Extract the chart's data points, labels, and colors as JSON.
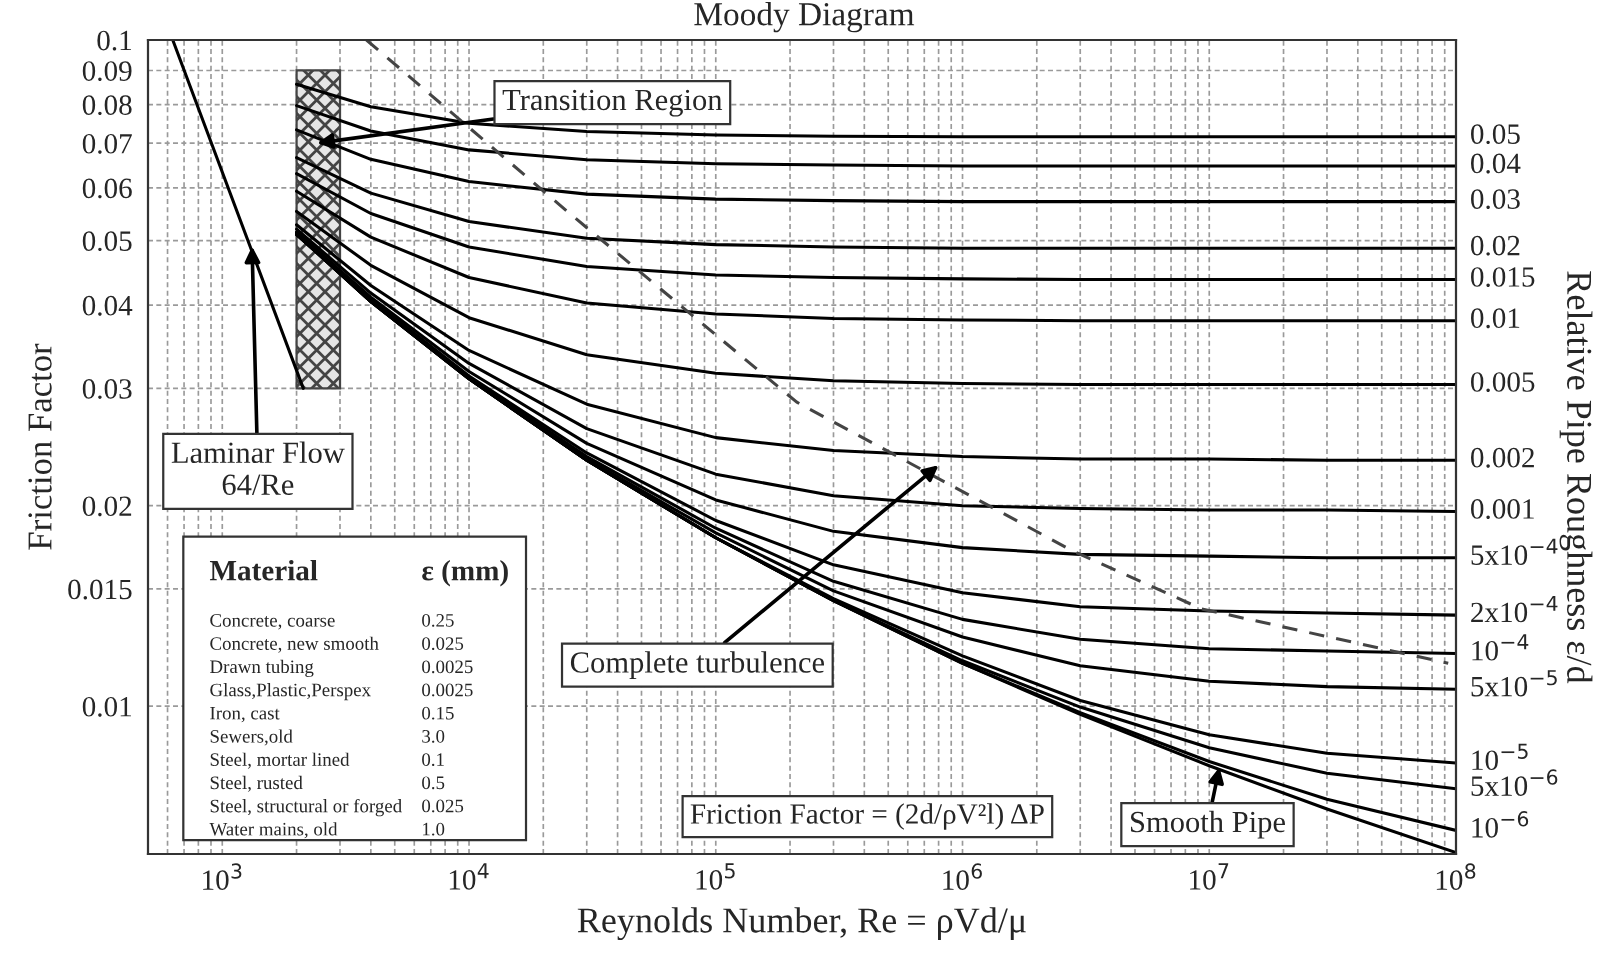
{
  "chart_data": {
    "type": "line",
    "title": "Moody Diagram",
    "xlabel": "Reynolds Number, Re = ρVd/μ",
    "ylabel": "Friction Factor",
    "log": "xy",
    "grid": true,
    "xlim": [
      500,
      100000000
    ],
    "ylim": [
      0.006,
      0.1
    ],
    "xticks": [
      {
        "value": 1000,
        "label": "10$^{3}$"
      },
      {
        "value": 10000,
        "label": "10$^{4}$"
      },
      {
        "value": 100000,
        "label": "10$^{5}$"
      },
      {
        "value": 1000000,
        "label": "10$^{6}$"
      },
      {
        "value": 10000000,
        "label": "10$^{7}$"
      },
      {
        "value": 100000000,
        "label": "10$^{8}$"
      }
    ],
    "yticks": [
      0.1,
      0.09,
      0.08,
      0.07,
      0.06,
      0.05,
      0.04,
      0.03,
      0.02,
      0.015,
      0.01
    ],
    "x": [
      2000,
      4000,
      10000,
      30000,
      100000,
      300000,
      1000000,
      3000000,
      10000000,
      30000000,
      100000000
    ],
    "series": [
      {
        "name": "0.05",
        "color": "#000000",
        "values": [
          0.0858,
          0.0794,
          0.075,
          0.0729,
          0.072,
          0.0717,
          0.0716,
          0.0716,
          0.0716,
          0.0716,
          0.0716
        ]
      },
      {
        "name": "0.04",
        "color": "#000000",
        "values": [
          0.0797,
          0.073,
          0.0684,
          0.0661,
          0.0652,
          0.0649,
          0.0647,
          0.0647,
          0.0647,
          0.0647,
          0.0647
        ]
      },
      {
        "name": "0.03",
        "color": "#000000",
        "values": [
          0.0733,
          0.0662,
          0.0613,
          0.0587,
          0.0577,
          0.0574,
          0.0572,
          0.0572,
          0.0572,
          0.0572,
          0.0572
        ]
      },
      {
        "name": "0.02",
        "color": "#000000",
        "values": [
          0.0666,
          0.0589,
          0.0534,
          0.0504,
          0.0493,
          0.0489,
          0.0487,
          0.0487,
          0.0487,
          0.0487,
          0.0487
        ]
      },
      {
        "name": "0.015",
        "color": "#000000",
        "values": [
          0.063,
          0.0549,
          0.0489,
          0.0457,
          0.0444,
          0.044,
          0.0438,
          0.0437,
          0.0437,
          0.0437,
          0.0437
        ]
      },
      {
        "name": "0.01",
        "color": "#000000",
        "values": [
          0.0593,
          0.0506,
          0.044,
          0.0403,
          0.0388,
          0.0382,
          0.038,
          0.0379,
          0.0379,
          0.0379,
          0.0379
        ]
      },
      {
        "name": "0.005",
        "color": "#000000",
        "values": [
          0.0553,
          0.0459,
          0.0383,
          0.0337,
          0.0316,
          0.0308,
          0.0305,
          0.0304,
          0.0304,
          0.0304,
          0.0304
        ]
      },
      {
        "name": "0.002",
        "color": "#000000",
        "values": [
          0.0528,
          0.0428,
          0.0342,
          0.0284,
          0.0253,
          0.0242,
          0.0237,
          0.0235,
          0.0235,
          0.0234,
          0.0234
        ]
      },
      {
        "name": "0.001",
        "color": "#000000",
        "values": [
          0.052,
          0.0417,
          0.0327,
          0.0261,
          0.0223,
          0.0207,
          0.02,
          0.0198,
          0.0197,
          0.0197,
          0.0196
        ]
      },
      {
        "name": "5x10$^{−4}$",
        "color": "#000000",
        "values": [
          0.0515,
          0.0411,
          0.0318,
          0.0248,
          0.0204,
          0.0183,
          0.0173,
          0.0169,
          0.0168,
          0.0167,
          0.0167
        ]
      },
      {
        "name": "2x10$^{−4}$",
        "color": "#000000",
        "values": [
          0.0513,
          0.0408,
          0.0313,
          0.024,
          0.019,
          0.0163,
          0.0148,
          0.0141,
          0.0139,
          0.0138,
          0.0137
        ]
      },
      {
        "name": "10$^{−4}$",
        "color": "#000000",
        "values": [
          0.0512,
          0.0406,
          0.0311,
          0.0237,
          0.0185,
          0.0154,
          0.0135,
          0.0126,
          0.0122,
          0.0121,
          0.012
        ]
      },
      {
        "name": "5x10$^{−5}$",
        "color": "#000000",
        "values": [
          0.0511,
          0.0406,
          0.0311,
          0.0235,
          0.0182,
          0.0149,
          0.0127,
          0.0115,
          0.0109,
          0.0107,
          0.0106
        ]
      },
      {
        "name": "10$^{−5}$",
        "color": "#000000",
        "values": [
          0.0511,
          0.0405,
          0.031,
          0.0234,
          0.0179,
          0.0145,
          0.0119,
          0.0102,
          0.00906,
          0.0085,
          0.00822
        ]
      },
      {
        "name": "5x10$^{−6}$",
        "color": "#000000",
        "values": [
          0.0511,
          0.0405,
          0.031,
          0.0234,
          0.0179,
          0.0144,
          0.0117,
          0.00997,
          0.00866,
          0.00793,
          0.00752
        ]
      },
      {
        "name": "10$^{−6}$",
        "color": "#000000",
        "values": [
          0.0511,
          0.0405,
          0.031,
          0.0234,
          0.0179,
          0.0144,
          0.0116,
          0.00978,
          0.00826,
          0.00725,
          0.00651
        ]
      },
      {
        "color": "#000000",
        "values": [
          0.0511,
          0.0405,
          0.031,
          0.0234,
          0.0179,
          0.0144,
          0.0116,
          0.00972,
          0.00814,
          0.00701,
          0.00603
        ]
      },
      {
        "color": "#000000",
        "x": [
          630,
          2130
        ],
        "values": [
          0.1,
          0.03
        ]
      },
      {
        "color": "#444444",
        "line_style": "dashed",
        "x": [
          3840,
          25000,
          213000,
          2800000,
          9300000,
          93000000
        ],
        "values": [
          0.1,
          0.0553,
          0.0286,
          0.0171,
          0.014,
          0.0116
        ]
      },
      {
        "type": "bar",
        "color": "#444444",
        "x": [
          2450
        ],
        "base": [
          0.03
        ],
        "values": [
          0.06
        ]
      }
    ],
    "annotations": [
      {
        "text": "Transition Region",
        "x": 2420,
        "y": 0.07
      },
      {
        "text": "Laminar Flow\n64/Re",
        "x": 1320,
        "y": 0.049
      },
      {
        "text": "Complete turbulence",
        "x": 800000,
        "y": 0.023
      },
      {
        "text": "Smooth Pipe",
        "x": 11000000,
        "y": 0.0081
      },
      "Friction Factor = (2d/ρV²l) ΔP",
      "Material\tε (mm)",
      "Concrete, coarse\t0.25",
      "Concrete, new smooth\t0.025",
      "Drawn tubing\t0.0025",
      "Glass,Plastic,Perspex\t0.0025",
      "Iron, cast\t0.15",
      "Sewers,old\t3.0",
      "Steel, mortar lined\t0.1",
      "Steel, rusted\t0.5",
      "Steel, structural or forged\t0.025",
      "Water mains, old\t1.0",
      "Relative Pipe Roughness ε/d"
    ]
  }
}
